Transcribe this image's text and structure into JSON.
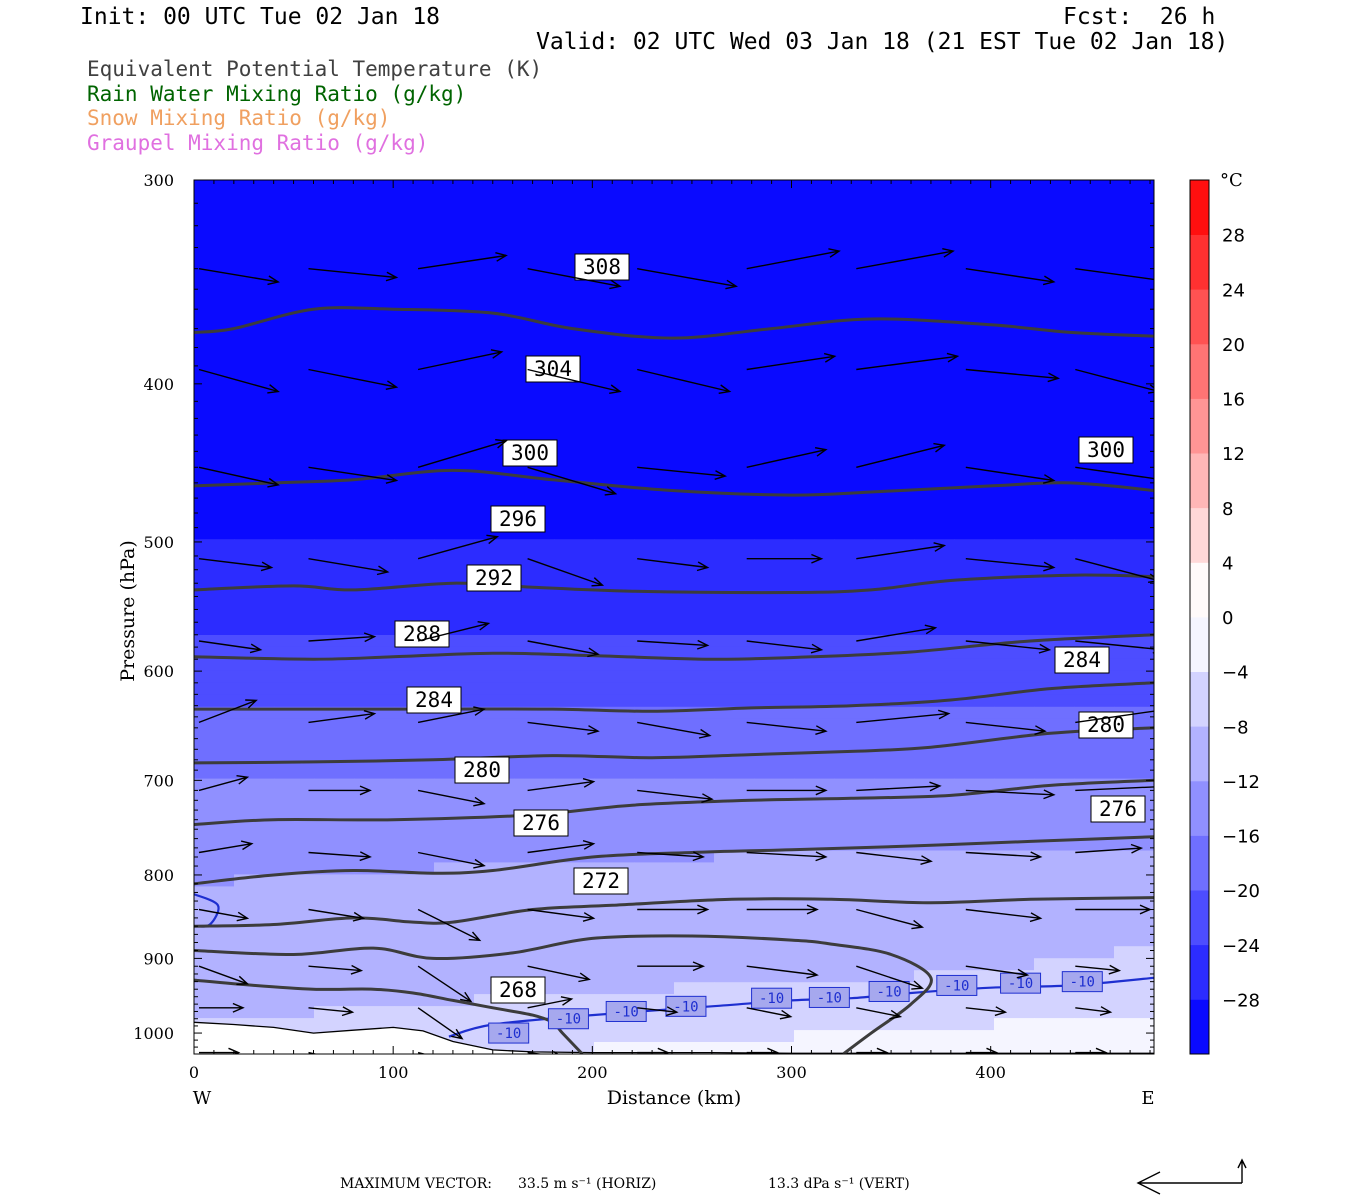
{
  "header": {
    "init": "Init: 00 UTC Tue 02 Jan 18",
    "fcst": "Fcst:  26 h",
    "valid": "Valid: 02 UTC Wed 03 Jan 18 (21 EST Tue 02 Jan 18)"
  },
  "legend": [
    {
      "text": "Equivalent Potential Temperature (K)",
      "color": "#404040"
    },
    {
      "text": "Rain Water Mixing Ratio (g/kg)",
      "color": "#006400"
    },
    {
      "text": "Snow Mixing Ratio (g/kg)",
      "color": "#f0a060"
    },
    {
      "text": "Graupel Mixing Ratio (g/kg)",
      "color": "#e070e0"
    }
  ],
  "footer": {
    "max_vector_label": "MAXIMUM VECTOR:",
    "horiz": "33.5 m s⁻¹ (HORIZ)",
    "vert": "13.3 dPa s⁻¹ (VERT)"
  },
  "chart_data": {
    "type": "heatmap",
    "title": "",
    "xlabel": "Distance (km)",
    "ylabel": "Pressure (hPa)",
    "xlim": [
      0,
      482
    ],
    "ylim": [
      300,
      1030
    ],
    "y_scale": "log",
    "x_ticks": [
      0,
      100,
      200,
      300,
      400
    ],
    "y_ticks": [
      300,
      400,
      500,
      600,
      700,
      800,
      900,
      1000
    ],
    "x_end_labels": {
      "left": "W",
      "right": "E"
    },
    "colorbar": {
      "unit": "°C",
      "ticks": [
        28,
        24,
        20,
        16,
        12,
        8,
        4,
        0,
        -4,
        -8,
        -12,
        -16,
        -20,
        -24,
        -28
      ],
      "min": -32,
      "max": 32,
      "step": 4
    },
    "temperature_field": [
      {
        "p": 300,
        "t": -50
      },
      {
        "p": 450,
        "t": -34
      },
      {
        "p": 500,
        "t": -28
      },
      {
        "p": 600,
        "t": -22
      },
      {
        "p": 700,
        "t": -16
      },
      {
        "p": 780,
        "t": -12
      },
      {
        "p": 850,
        "t": -10
      },
      {
        "p": 920,
        "t": -9
      },
      {
        "p": 980,
        "t": -6
      },
      {
        "p": 1030,
        "t": -3
      }
    ],
    "theta_e_contours": [
      {
        "label": "308",
        "x": [
          0,
          20,
          60,
          100,
          150,
          190,
          240,
          290,
          340,
          400,
          440,
          482
        ],
        "p": [
          372,
          370,
          360,
          360,
          362,
          370,
          375,
          370,
          365,
          368,
          372,
          374
        ]
      },
      {
        "label": "304",
        "x": [
          0,
          40,
          80,
          130,
          180,
          240,
          300,
          340,
          400,
          440,
          482
        ],
        "p": [
          462,
          460,
          458,
          452,
          458,
          465,
          468,
          466,
          462,
          460,
          465
        ]
      },
      {
        "label": "300",
        "x": [
          0,
          50,
          80,
          130,
          170,
          220,
          300,
          340,
          380,
          440,
          482
        ],
        "p": [
          535,
          532,
          535,
          530,
          533,
          536,
          537,
          535,
          528,
          524,
          525
        ]
      },
      {
        "label": "296",
        "x": [
          0,
          60,
          100,
          150,
          200,
          260,
          310,
          360,
          420,
          482
        ],
        "p": [
          588,
          590,
          588,
          585,
          587,
          590,
          588,
          584,
          575,
          570
        ]
      },
      {
        "label": "292",
        "x": [
          0,
          60,
          120,
          180,
          230,
          280,
          330,
          380,
          430,
          482
        ],
        "p": [
          633,
          633,
          633,
          633,
          635,
          632,
          630,
          625,
          615,
          610
        ]
      },
      {
        "label": "288",
        "x": [
          0,
          60,
          120,
          180,
          230,
          280,
          330,
          370,
          430,
          482
        ],
        "p": [
          683,
          682,
          680,
          676,
          678,
          675,
          672,
          668,
          655,
          650
        ]
      },
      {
        "label": "284",
        "x": [
          0,
          40,
          100,
          170,
          220,
          280,
          330,
          380,
          430,
          482
        ],
        "p": [
          745,
          740,
          740,
          735,
          725,
          720,
          718,
          715,
          705,
          700
        ]
      },
      {
        "label": "280",
        "x": [
          0,
          40,
          80,
          120,
          150,
          200,
          250,
          300,
          360,
          420,
          482
        ],
        "p": [
          810,
          800,
          795,
          798,
          795,
          780,
          775,
          772,
          768,
          763,
          758
        ]
      },
      {
        "label": "276",
        "x": [
          0,
          40,
          80,
          110,
          130,
          170,
          210,
          270,
          320,
          370,
          420,
          482
        ],
        "p": [
          860,
          858,
          850,
          855,
          855,
          840,
          835,
          828,
          828,
          832,
          828,
          826
        ]
      },
      {
        "label": "272",
        "x": [
          0,
          50,
          90,
          120,
          160,
          200,
          250,
          300,
          320,
          350,
          370,
          360,
          340,
          326
        ],
        "p": [
          890,
          895,
          887,
          900,
          893,
          875,
          872,
          877,
          882,
          895,
          925,
          960,
          1000,
          1030
        ]
      },
      {
        "label": "268",
        "x": [
          0,
          30,
          60,
          90,
          110,
          130,
          150,
          170,
          180,
          185,
          195
        ],
        "p": [
          928,
          935,
          940,
          940,
          945,
          955,
          965,
          975,
          985,
          1000,
          1030
        ]
      }
    ],
    "ground_pressure": [
      {
        "x": 0,
        "p": 985
      },
      {
        "x": 20,
        "p": 988
      },
      {
        "x": 40,
        "p": 992
      },
      {
        "x": 60,
        "p": 1000
      },
      {
        "x": 80,
        "p": 996
      },
      {
        "x": 100,
        "p": 992
      },
      {
        "x": 115,
        "p": 997
      },
      {
        "x": 130,
        "p": 1012
      },
      {
        "x": 150,
        "p": 1024
      },
      {
        "x": 170,
        "p": 1027
      },
      {
        "x": 200,
        "p": 1028
      },
      {
        "x": 260,
        "p": 1028
      },
      {
        "x": 300,
        "p": 1029
      },
      {
        "x": 400,
        "p": 1029
      },
      {
        "x": 482,
        "p": 1029
      }
    ],
    "isotherm_minus10": {
      "x": [
        0,
        12,
        8,
        0,
        0,
        128,
        150,
        200,
        260,
        300,
        330,
        360,
        400,
        440,
        482
      ],
      "p": [
        822,
        835,
        858,
        860,
        0,
        1005,
        988,
        975,
        963,
        955,
        952,
        945,
        938,
        935,
        925
      ]
    },
    "isotherm_labels": [
      {
        "x": 158,
        "p": 1000,
        "text": "-10"
      },
      {
        "x": 188,
        "p": 980,
        "text": "-10"
      },
      {
        "x": 217,
        "p": 970,
        "text": "-10"
      },
      {
        "x": 247,
        "p": 963,
        "text": "-10"
      },
      {
        "x": 290,
        "p": 952,
        "text": "-10"
      },
      {
        "x": 319,
        "p": 951,
        "text": "-10"
      },
      {
        "x": 349,
        "p": 943,
        "text": "-10"
      },
      {
        "x": 383,
        "p": 935,
        "text": "-10"
      },
      {
        "x": 415,
        "p": 932,
        "text": "-10"
      },
      {
        "x": 446,
        "p": 930,
        "text": "-10"
      }
    ],
    "wind_vectors": {
      "x": [
        0,
        55,
        110,
        165,
        220,
        275,
        330,
        385,
        440
      ],
      "p": [
        340,
        392,
        450,
        512,
        575,
        645,
        710,
        775,
        840,
        910,
        965,
        1028
      ],
      "u": [
        [
          36,
          40,
          40,
          42,
          45,
          42,
          44,
          40,
          44
        ],
        [
          36,
          40,
          38,
          42,
          42,
          40,
          46,
          42,
          38
        ],
        [
          36,
          40,
          40,
          40,
          40,
          36,
          40,
          40,
          42
        ],
        [
          33,
          36,
          36,
          34,
          32,
          34,
          40,
          40,
          38
        ],
        [
          28,
          30,
          32,
          32,
          32,
          34,
          36,
          38,
          40
        ],
        [
          26,
          30,
          30,
          32,
          33,
          36,
          42,
          36,
          42
        ],
        [
          22,
          28,
          30,
          30,
          34,
          36,
          38,
          40,
          45
        ],
        [
          24,
          28,
          30,
          30,
          30,
          36,
          34,
          34,
          30
        ],
        [
          22,
          25,
          28,
          30,
          32,
          32,
          30,
          34,
          34
        ],
        [
          22,
          24,
          24,
          28,
          30,
          32,
          30,
          28,
          20
        ],
        [
          20,
          20,
          20,
          20,
          18,
          20,
          20,
          18,
          16
        ],
        [
          18,
          18,
          16,
          16,
          14,
          14,
          14,
          14,
          14
        ]
      ],
      "v": [
        [
          -6,
          -4,
          6,
          -8,
          -8,
          8,
          8,
          -6,
          -6
        ],
        [
          -10,
          -8,
          8,
          -10,
          -10,
          6,
          6,
          -4,
          -10
        ],
        [
          -8,
          -6,
          12,
          -12,
          -4,
          8,
          10,
          -6,
          -6
        ],
        [
          -4,
          -6,
          10,
          -12,
          -4,
          0,
          6,
          -4,
          -10
        ],
        [
          -4,
          2,
          8,
          -6,
          -2,
          -4,
          6,
          -4,
          -4
        ],
        [
          10,
          4,
          6,
          -4,
          -6,
          -4,
          4,
          -4,
          6
        ],
        [
          6,
          0,
          -6,
          4,
          -4,
          0,
          2,
          -2,
          2
        ],
        [
          4,
          -2,
          -6,
          4,
          -2,
          -2,
          -4,
          -2,
          2
        ],
        [
          -4,
          -4,
          -14,
          -4,
          0,
          0,
          -8,
          -4,
          0
        ],
        [
          -8,
          -2,
          -16,
          -6,
          0,
          -4,
          -10,
          -4,
          -2
        ],
        [
          0,
          -2,
          -14,
          4,
          -2,
          -4,
          -4,
          -2,
          -2
        ],
        [
          0,
          -4,
          -4,
          -2,
          0,
          0,
          0,
          0,
          0
        ]
      ]
    }
  }
}
